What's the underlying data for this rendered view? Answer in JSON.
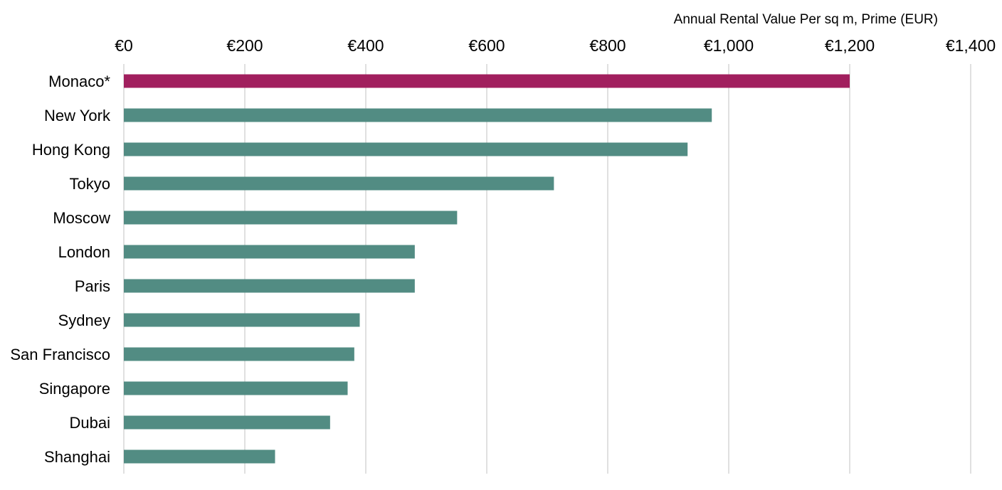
{
  "chart_data": {
    "type": "bar",
    "orientation": "horizontal",
    "title": "Annual Rental Value Per sq m, Prime (EUR)",
    "xlabel": "Annual Rental Value Per sq m, Prime (EUR)",
    "ylabel": "",
    "xlim": [
      0,
      1400
    ],
    "xticks": [
      0,
      200,
      400,
      600,
      800,
      1000,
      1200,
      1400
    ],
    "xtick_labels": [
      "€0",
      "€200",
      "€400",
      "€600",
      "€800",
      "€1,000",
      "€1,200",
      "€1,400"
    ],
    "axis_position": "top",
    "grid": true,
    "categories": [
      "Monaco*",
      "New York",
      "Hong Kong",
      "Tokyo",
      "Moscow",
      "London",
      "Paris",
      "Sydney",
      "San Francisco",
      "Singapore",
      "Dubai",
      "Shanghai"
    ],
    "values": [
      1200,
      972,
      932,
      711,
      551,
      481,
      481,
      390,
      381,
      370,
      341,
      250
    ],
    "highlight_category": "Monaco*",
    "colors": {
      "highlight": "#A11F5E",
      "default": "#528C83",
      "grid": "#C0C0C0"
    }
  }
}
